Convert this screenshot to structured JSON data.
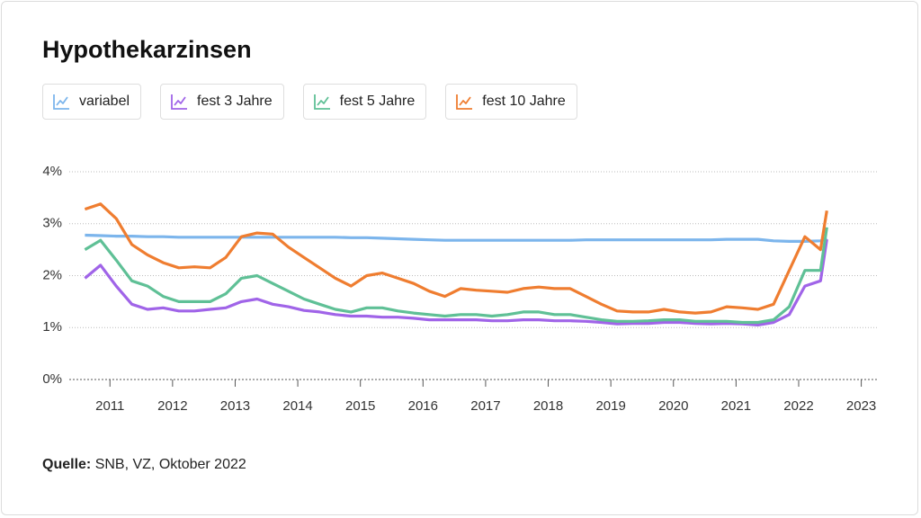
{
  "chart_data": {
    "type": "line",
    "title": "Hypothekarzinsen",
    "source_label": "Quelle:",
    "source": "SNB, VZ, Oktober 2022",
    "x": [
      2010.6,
      2010.85,
      2011.1,
      2011.35,
      2011.6,
      2011.85,
      2012.1,
      2012.35,
      2012.6,
      2012.85,
      2013.1,
      2013.35,
      2013.6,
      2013.85,
      2014.1,
      2014.35,
      2014.6,
      2014.85,
      2015.1,
      2015.35,
      2015.6,
      2015.85,
      2016.1,
      2016.35,
      2016.6,
      2016.85,
      2017.1,
      2017.35,
      2017.6,
      2017.85,
      2018.1,
      2018.35,
      2018.6,
      2018.85,
      2019.1,
      2019.35,
      2019.6,
      2019.85,
      2020.1,
      2020.35,
      2020.6,
      2020.85,
      2021.1,
      2021.35,
      2021.6,
      2021.85,
      2022.1,
      2022.35,
      2022.45
    ],
    "series": [
      {
        "name": "variabel",
        "color": "#7cb5ec",
        "values": [
          2.78,
          2.77,
          2.76,
          2.76,
          2.75,
          2.75,
          2.74,
          2.74,
          2.74,
          2.74,
          2.74,
          2.74,
          2.74,
          2.74,
          2.74,
          2.74,
          2.74,
          2.73,
          2.73,
          2.72,
          2.71,
          2.7,
          2.69,
          2.68,
          2.68,
          2.68,
          2.68,
          2.68,
          2.68,
          2.68,
          2.68,
          2.68,
          2.69,
          2.69,
          2.69,
          2.69,
          2.69,
          2.69,
          2.69,
          2.69,
          2.69,
          2.7,
          2.7,
          2.7,
          2.67,
          2.66,
          2.66,
          2.67,
          2.72
        ]
      },
      {
        "name": "fest 3 Jahre",
        "color": "#a064e8",
        "values": [
          1.95,
          2.2,
          1.8,
          1.45,
          1.35,
          1.38,
          1.32,
          1.32,
          1.35,
          1.38,
          1.5,
          1.55,
          1.45,
          1.4,
          1.33,
          1.3,
          1.25,
          1.22,
          1.22,
          1.2,
          1.2,
          1.18,
          1.15,
          1.15,
          1.15,
          1.15,
          1.13,
          1.13,
          1.15,
          1.15,
          1.13,
          1.13,
          1.12,
          1.1,
          1.07,
          1.08,
          1.08,
          1.1,
          1.1,
          1.08,
          1.07,
          1.08,
          1.07,
          1.05,
          1.1,
          1.25,
          1.8,
          1.9,
          2.7
        ]
      },
      {
        "name": "fest 5 Jahre",
        "color": "#5fc096",
        "values": [
          2.5,
          2.68,
          2.3,
          1.9,
          1.8,
          1.6,
          1.5,
          1.5,
          1.5,
          1.65,
          1.95,
          2.0,
          1.85,
          1.7,
          1.55,
          1.45,
          1.35,
          1.3,
          1.38,
          1.38,
          1.32,
          1.28,
          1.25,
          1.22,
          1.25,
          1.25,
          1.22,
          1.25,
          1.3,
          1.3,
          1.25,
          1.25,
          1.2,
          1.15,
          1.12,
          1.12,
          1.13,
          1.15,
          1.15,
          1.12,
          1.12,
          1.12,
          1.1,
          1.1,
          1.15,
          1.4,
          2.1,
          2.1,
          2.93
        ]
      },
      {
        "name": "fest 10 Jahre",
        "color": "#ef7d30",
        "values": [
          3.28,
          3.38,
          3.1,
          2.6,
          2.4,
          2.25,
          2.15,
          2.17,
          2.15,
          2.35,
          2.75,
          2.82,
          2.8,
          2.55,
          2.35,
          2.15,
          1.95,
          1.8,
          2.0,
          2.05,
          1.95,
          1.85,
          1.7,
          1.6,
          1.75,
          1.72,
          1.7,
          1.68,
          1.75,
          1.78,
          1.75,
          1.75,
          1.6,
          1.45,
          1.32,
          1.3,
          1.3,
          1.35,
          1.3,
          1.28,
          1.3,
          1.4,
          1.38,
          1.35,
          1.45,
          2.1,
          2.75,
          2.5,
          3.25
        ]
      }
    ],
    "xlim": [
      2010.35,
      2023.25
    ],
    "xticks": [
      2011,
      2012,
      2013,
      2014,
      2015,
      2016,
      2017,
      2018,
      2019,
      2020,
      2021,
      2022,
      2023
    ],
    "ylim": [
      0,
      4
    ],
    "yticks": [
      {
        "value": 0,
        "label": "0%"
      },
      {
        "value": 1,
        "label": "1%"
      },
      {
        "value": 2,
        "label": "2%"
      },
      {
        "value": 3,
        "label": "3%"
      },
      {
        "value": 4,
        "label": "4%"
      }
    ],
    "grid": true
  }
}
